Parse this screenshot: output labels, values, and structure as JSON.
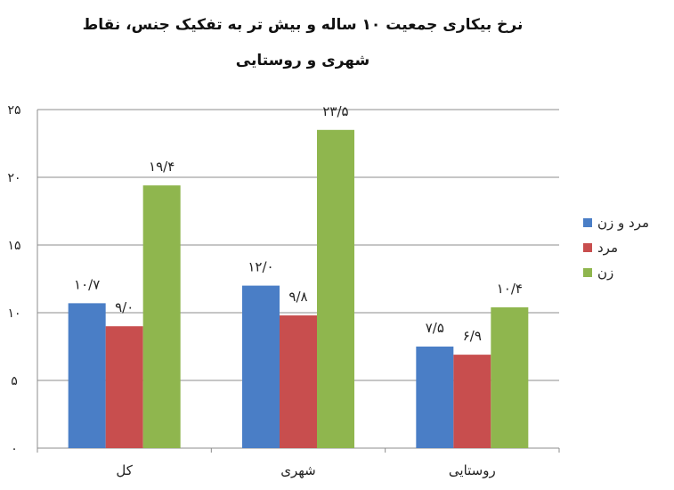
{
  "chart_data": {
    "type": "bar",
    "title_line1": "نرخ بیکاری جمعیت ۱۰ ساله و بیش تر به تفکیک جنس، نقاط",
    "title_line2": "شهری و روستایی",
    "categories": [
      "کل",
      "شهری",
      "روستایی"
    ],
    "series": [
      {
        "name": "مرد و زن",
        "values": [
          10.7,
          12.0,
          7.5
        ],
        "labels": [
          "۱۰/۷",
          "۱۲/۰",
          "۷/۵"
        ],
        "color": "#4a7ec6"
      },
      {
        "name": "مرد",
        "values": [
          9.0,
          9.8,
          6.9
        ],
        "labels": [
          "۹/۰",
          "۹/۸",
          "۶/۹"
        ],
        "color": "#c84e4e"
      },
      {
        "name": "زن",
        "values": [
          19.4,
          23.5,
          10.4
        ],
        "labels": [
          "۱۹/۴",
          "۲۳/۵",
          "۱۰/۴"
        ],
        "color": "#8fb64e"
      }
    ],
    "yticks": [
      0,
      5,
      10,
      15,
      20,
      25
    ],
    "ytick_labels": [
      "۰",
      "۵",
      "۱۰",
      "۱۵",
      "۲۰",
      "۲۵"
    ],
    "ylim": [
      0,
      25
    ],
    "grid": true,
    "legend_position": "right"
  }
}
